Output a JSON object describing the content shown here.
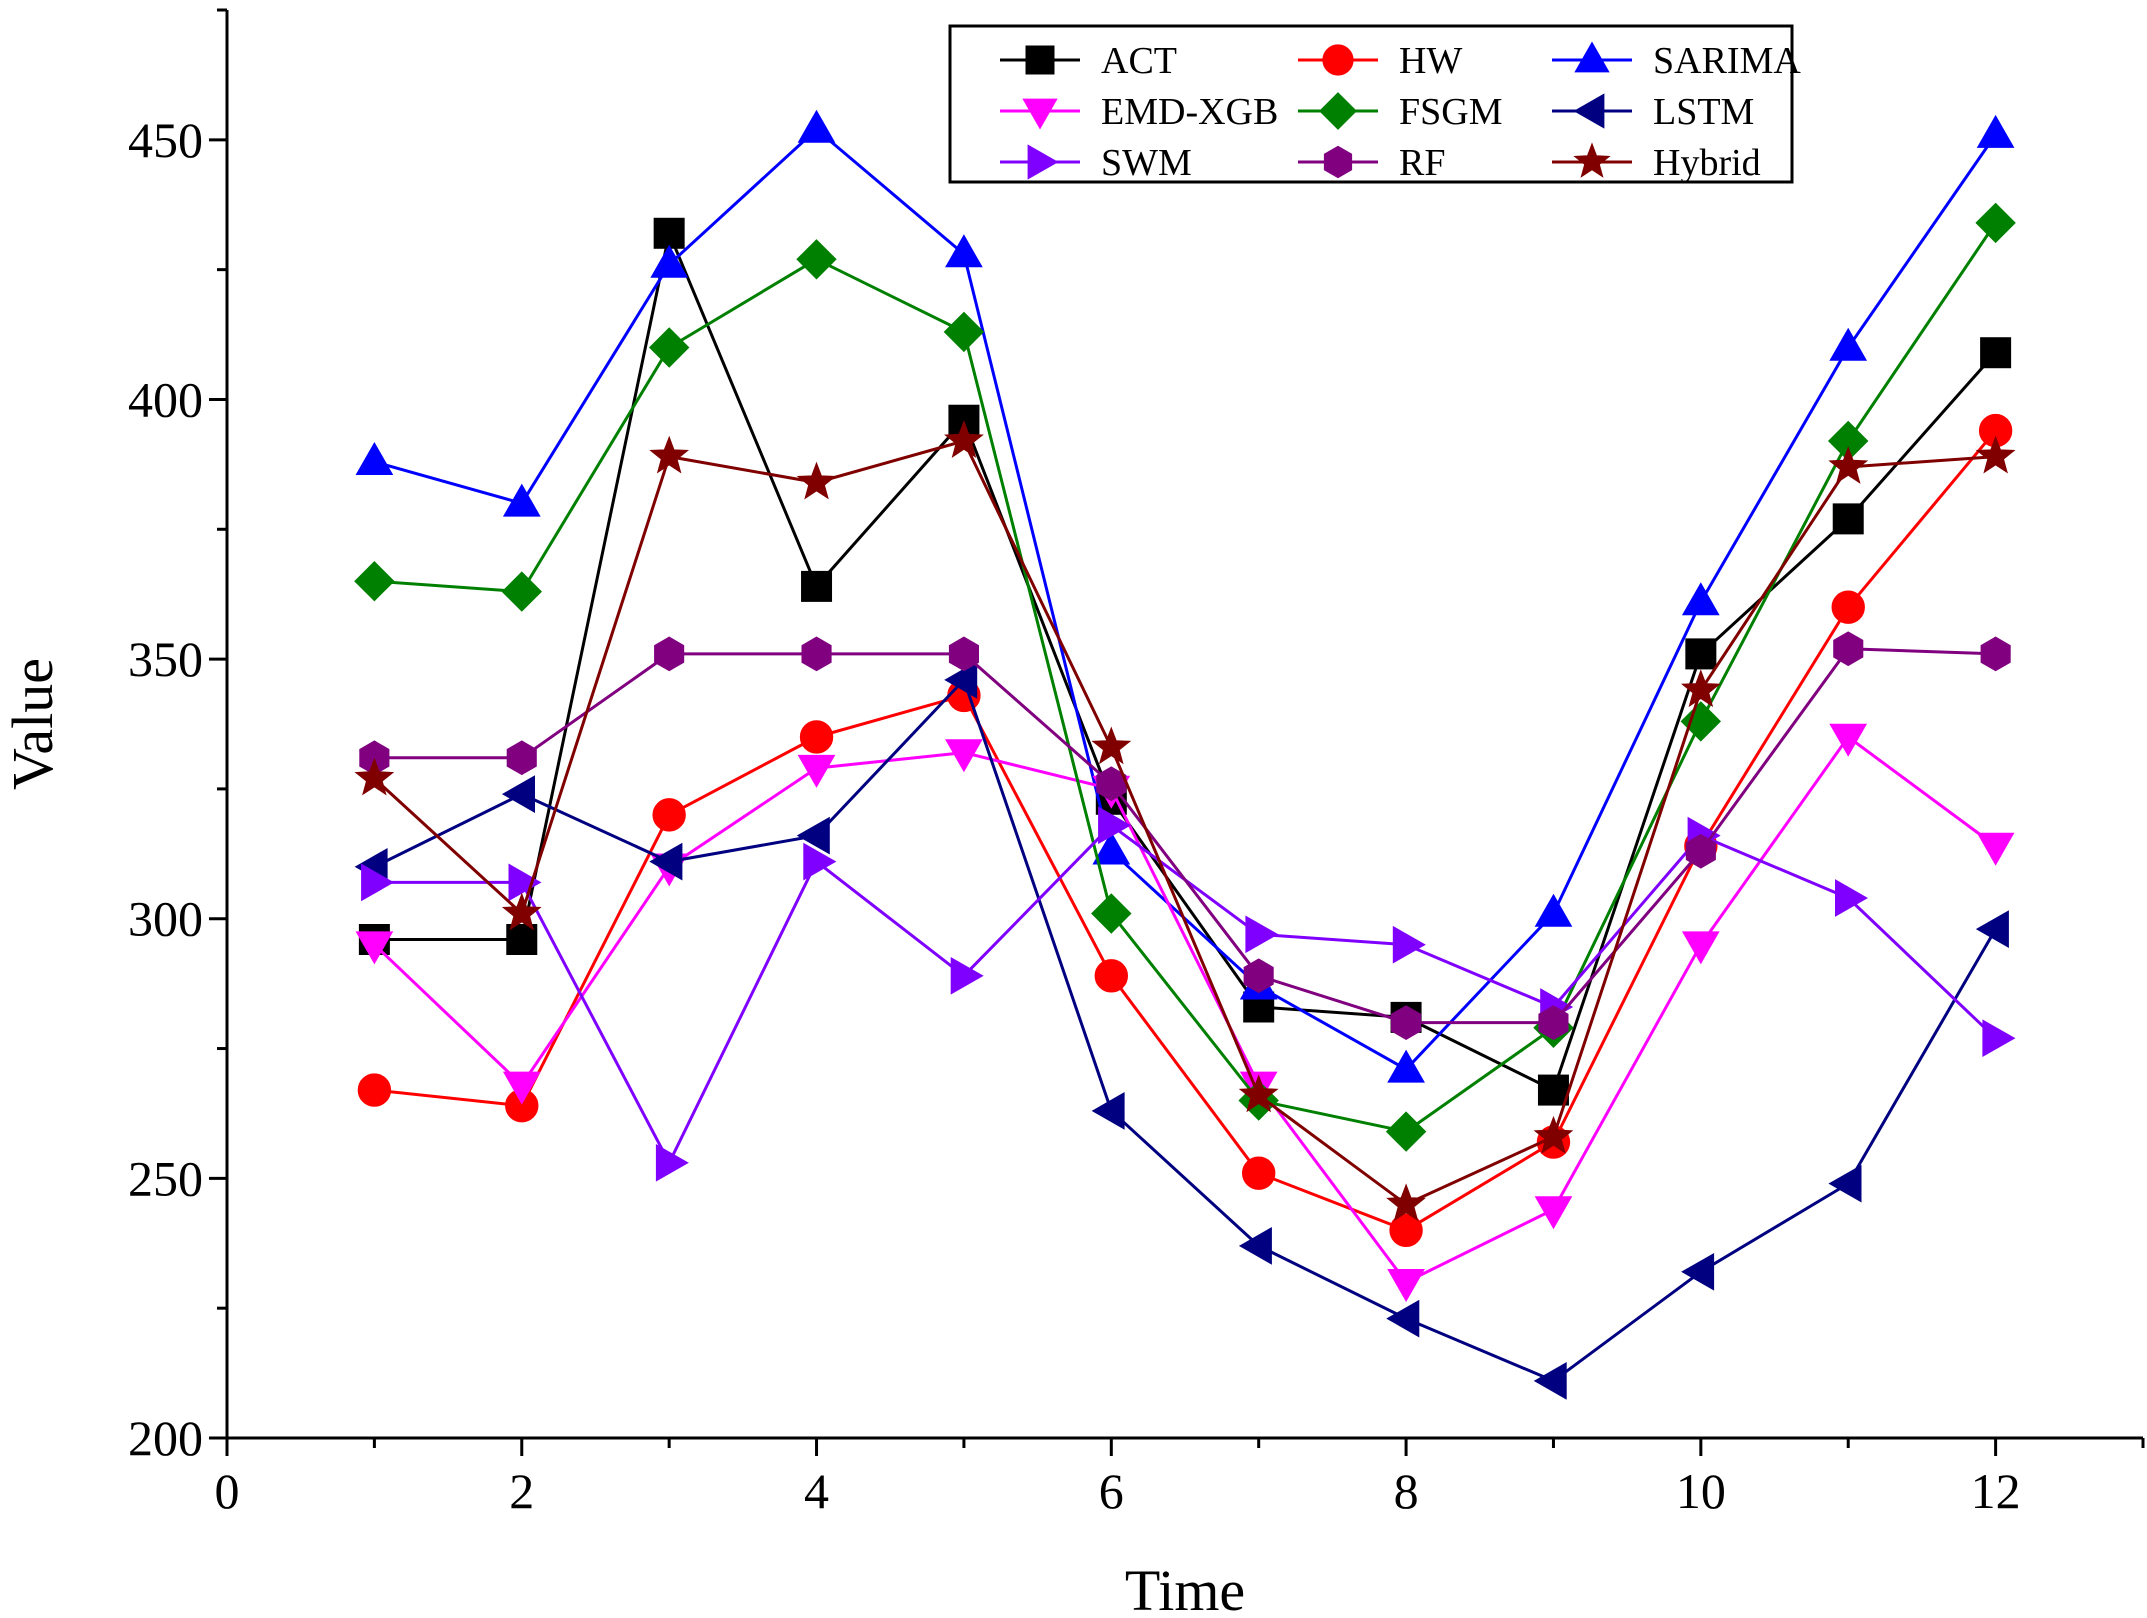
{
  "chart_data": {
    "type": "line",
    "title": "",
    "xlabel": "Time",
    "ylabel": "Value",
    "xlim": [
      0,
      13
    ],
    "ylim": [
      200,
      475
    ],
    "xticks": [
      0,
      2,
      4,
      6,
      8,
      10,
      12
    ],
    "yticks": [
      200,
      250,
      300,
      350,
      400,
      450
    ],
    "x": [
      1,
      2,
      3,
      4,
      5,
      6,
      7,
      8,
      9,
      10,
      11,
      12
    ],
    "legend_position": "top-right",
    "series": [
      {
        "name": "ACT",
        "color": "#000000",
        "marker": "square",
        "values": [
          296,
          296,
          432,
          364,
          396,
          323,
          283,
          281,
          267,
          351,
          377,
          409
        ]
      },
      {
        "name": "HW",
        "color": "#ff0000",
        "marker": "circle",
        "values": [
          267,
          264,
          320,
          335,
          343,
          289,
          251,
          240,
          257,
          314,
          360,
          394
        ]
      },
      {
        "name": "SARIMA",
        "color": "#0000ff",
        "marker": "triangle-up",
        "values": [
          388,
          380,
          426,
          452,
          428,
          313,
          287,
          271,
          301,
          361,
          410,
          451
        ]
      },
      {
        "name": "EMD-XGB",
        "color": "#ff00ff",
        "marker": "triangle-down",
        "values": [
          295,
          268,
          310,
          329,
          332,
          325,
          268,
          230,
          244,
          295,
          335,
          314
        ]
      },
      {
        "name": "FSGM",
        "color": "#008000",
        "marker": "diamond",
        "values": [
          365,
          363,
          410,
          427,
          413,
          301,
          265,
          259,
          279,
          338,
          392,
          434
        ]
      },
      {
        "name": "LSTM",
        "color": "#000080",
        "marker": "triangle-left",
        "values": [
          310,
          324,
          311,
          316,
          346,
          263,
          237,
          223,
          211,
          232,
          249,
          298
        ]
      },
      {
        "name": "SWM",
        "color": "#8000ff",
        "marker": "triangle-right",
        "values": [
          307,
          307,
          253,
          311,
          289,
          318,
          297,
          295,
          283,
          316,
          304,
          277
        ]
      },
      {
        "name": "RF",
        "color": "#800080",
        "marker": "hexagon",
        "values": [
          331,
          331,
          351,
          351,
          351,
          326,
          289,
          280,
          280,
          313,
          352,
          351
        ]
      },
      {
        "name": "Hybrid",
        "color": "#800000",
        "marker": "star",
        "values": [
          327,
          301,
          389,
          384,
          392,
          333,
          266,
          245,
          258,
          344,
          387,
          389
        ]
      }
    ]
  }
}
